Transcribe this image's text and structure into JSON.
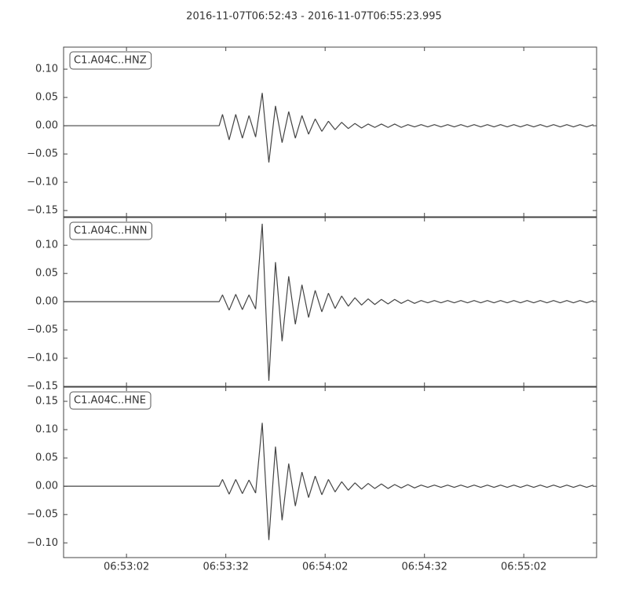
{
  "title": "2016-11-07T06:52:43  -  2016-11-07T06:55:23.995",
  "chart_data": [
    {
      "type": "line",
      "x": [
        24763,
        24810,
        24811,
        24813,
        24815,
        24817,
        24819,
        24821,
        24823,
        24825,
        24827,
        24829,
        24831,
        24833,
        24835,
        24837,
        24839,
        24841,
        24843,
        24845,
        24847,
        24849,
        24851,
        24853,
        24855,
        24857,
        24859,
        24861,
        24863,
        24865,
        24867,
        24869,
        24871,
        24873,
        24875,
        24877,
        24879,
        24881,
        24883,
        24885,
        24887,
        24889,
        24891,
        24893,
        24895,
        24897,
        24899,
        24901,
        24903,
        24905,
        24907,
        24909,
        24911,
        24913,
        24915,
        24917,
        24919,
        24921,
        24923
      ],
      "series": [
        {
          "name": "C1.A04C..HNZ",
          "color": "#444444",
          "values": [
            0,
            0,
            0.02,
            -0.025,
            0.02,
            -0.022,
            0.018,
            -0.02,
            0.058,
            -0.065,
            0.035,
            -0.03,
            0.025,
            -0.022,
            0.018,
            -0.015,
            0.012,
            -0.01,
            0.008,
            -0.007,
            0.006,
            -0.005,
            0.004,
            -0.004,
            0.003,
            -0.003,
            0.003,
            -0.003,
            0.003,
            -0.003,
            0.002,
            -0.002,
            0.002,
            -0.002,
            0.002,
            -0.002,
            0.002,
            -0.002,
            0.002,
            -0.002,
            0.002,
            -0.002,
            0.002,
            -0.002,
            0.002,
            -0.002,
            0.002,
            -0.002,
            0.002,
            -0.002,
            0.002,
            -0.002,
            0.002,
            -0.002,
            0.002,
            -0.002,
            0.002,
            -0.002,
            0.002
          ]
        }
      ],
      "xlim": [
        24763,
        24923.995
      ],
      "xticks": [
        24782,
        24812,
        24842,
        24872,
        24902
      ],
      "ylim": [
        -0.161,
        0.139
      ],
      "yticks": [
        {
          "value": -0.15,
          "label": "−0.15"
        },
        {
          "value": -0.1,
          "label": "−0.10"
        },
        {
          "value": -0.05,
          "label": "−0.05"
        },
        {
          "value": 0,
          "label": "0.00"
        },
        {
          "value": 0.05,
          "label": "0.05"
        },
        {
          "value": 0.1,
          "label": "0.10"
        }
      ]
    },
    {
      "type": "line",
      "x": [
        24763,
        24810,
        24811,
        24813,
        24815,
        24817,
        24819,
        24821,
        24823,
        24825,
        24827,
        24829,
        24831,
        24833,
        24835,
        24837,
        24839,
        24841,
        24843,
        24845,
        24847,
        24849,
        24851,
        24853,
        24855,
        24857,
        24859,
        24861,
        24863,
        24865,
        24867,
        24869,
        24871,
        24873,
        24875,
        24877,
        24879,
        24881,
        24883,
        24885,
        24887,
        24889,
        24891,
        24893,
        24895,
        24897,
        24899,
        24901,
        24903,
        24905,
        24907,
        24909,
        24911,
        24913,
        24915,
        24917,
        24919,
        24921,
        24923
      ],
      "series": [
        {
          "name": "C1.A04C..HNN",
          "color": "#444444",
          "values": [
            0,
            0,
            0.012,
            -0.015,
            0.013,
            -0.014,
            0.012,
            -0.013,
            0.138,
            -0.14,
            0.07,
            -0.07,
            0.045,
            -0.04,
            0.03,
            -0.028,
            0.02,
            -0.018,
            0.015,
            -0.012,
            0.01,
            -0.008,
            0.007,
            -0.006,
            0.005,
            -0.005,
            0.004,
            -0.004,
            0.004,
            -0.003,
            0.003,
            -0.003,
            0.002,
            -0.002,
            0.002,
            -0.002,
            0.002,
            -0.002,
            0.002,
            -0.002,
            0.002,
            -0.002,
            0.002,
            -0.002,
            0.002,
            -0.002,
            0.002,
            -0.002,
            0.002,
            -0.002,
            0.002,
            -0.002,
            0.002,
            -0.002,
            0.002,
            -0.002,
            0.002,
            -0.002,
            0.002
          ]
        }
      ],
      "xlim": [
        24763,
        24923.995
      ],
      "xticks": [
        24782,
        24812,
        24842,
        24872,
        24902
      ],
      "ylim": [
        -0.15,
        0.149
      ],
      "yticks": [
        {
          "value": -0.15,
          "label": "−0.15"
        },
        {
          "value": -0.1,
          "label": "−0.10"
        },
        {
          "value": -0.05,
          "label": "−0.05"
        },
        {
          "value": 0,
          "label": "0.00"
        },
        {
          "value": 0.05,
          "label": "0.05"
        },
        {
          "value": 0.1,
          "label": "0.10"
        }
      ]
    },
    {
      "type": "line",
      "x": [
        24763,
        24810,
        24811,
        24813,
        24815,
        24817,
        24819,
        24821,
        24823,
        24825,
        24827,
        24829,
        24831,
        24833,
        24835,
        24837,
        24839,
        24841,
        24843,
        24845,
        24847,
        24849,
        24851,
        24853,
        24855,
        24857,
        24859,
        24861,
        24863,
        24865,
        24867,
        24869,
        24871,
        24873,
        24875,
        24877,
        24879,
        24881,
        24883,
        24885,
        24887,
        24889,
        24891,
        24893,
        24895,
        24897,
        24899,
        24901,
        24903,
        24905,
        24907,
        24909,
        24911,
        24913,
        24915,
        24917,
        24919,
        24921,
        24923
      ],
      "series": [
        {
          "name": "C1.A04C..HNE",
          "color": "#444444",
          "values": [
            0,
            0,
            0.012,
            -0.014,
            0.012,
            -0.013,
            0.011,
            -0.012,
            0.112,
            -0.095,
            0.07,
            -0.06,
            0.04,
            -0.035,
            0.025,
            -0.02,
            0.018,
            -0.015,
            0.012,
            -0.01,
            0.008,
            -0.007,
            0.006,
            -0.005,
            0.005,
            -0.004,
            0.004,
            -0.004,
            0.003,
            -0.003,
            0.003,
            -0.003,
            0.002,
            -0.002,
            0.002,
            -0.002,
            0.002,
            -0.002,
            0.002,
            -0.002,
            0.002,
            -0.002,
            0.002,
            -0.002,
            0.002,
            -0.002,
            0.002,
            -0.002,
            0.002,
            -0.002,
            0.002,
            -0.002,
            0.002,
            -0.002,
            0.002,
            -0.002,
            0.002,
            -0.002,
            0.002
          ]
        }
      ],
      "xlim": [
        24763,
        24923.995
      ],
      "xticks": [
        {
          "value": 24782,
          "label": "06:53:02"
        },
        {
          "value": 24812,
          "label": "06:53:32"
        },
        {
          "value": 24842,
          "label": "06:54:02"
        },
        {
          "value": 24872,
          "label": "06:54:32"
        },
        {
          "value": 24902,
          "label": "06:55:02"
        }
      ],
      "ylim": [
        -0.126,
        0.175
      ],
      "yticks": [
        {
          "value": -0.1,
          "label": "−0.10"
        },
        {
          "value": -0.05,
          "label": "−0.05"
        },
        {
          "value": 0,
          "label": "0.00"
        },
        {
          "value": 0.05,
          "label": "0.05"
        },
        {
          "value": 0.1,
          "label": "0.10"
        },
        {
          "value": 0.15,
          "label": "0.15"
        }
      ]
    }
  ]
}
